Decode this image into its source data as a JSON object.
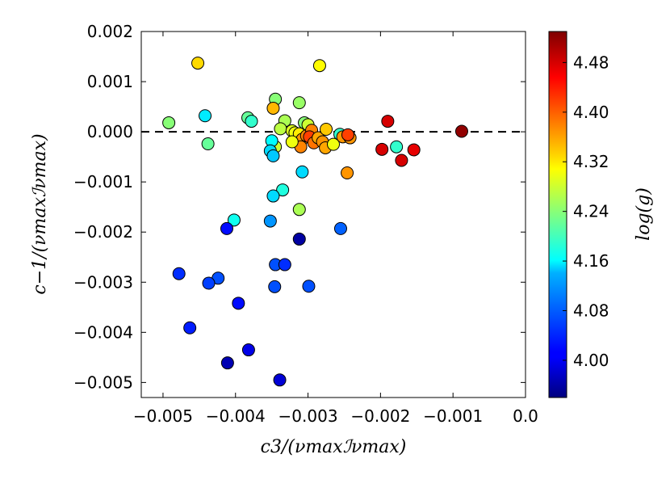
{
  "chart_data": {
    "type": "scatter",
    "title": "",
    "xlabel": "c3/(νmaxℐνmax)",
    "ylabel": "c−1/(νmaxℐνmax)",
    "xlim": [
      -0.0053,
      0.0
    ],
    "ylim": [
      -0.0053,
      0.002
    ],
    "xticks": [
      -0.005,
      -0.004,
      -0.003,
      -0.002,
      -0.001,
      0.0
    ],
    "yticks": [
      0.002,
      0.001,
      0.0,
      -0.001,
      -0.002,
      -0.003,
      -0.004,
      -0.005
    ],
    "xtick_labels": [
      "−0.005",
      "−0.004",
      "−0.003",
      "−0.002",
      "−0.001",
      "0.0"
    ],
    "ytick_labels": [
      "0.002",
      "0.001",
      "0.000",
      "−0.001",
      "−0.002",
      "−0.003",
      "−0.004",
      "−0.005"
    ],
    "reference_line": {
      "y": 0.0,
      "style": "dashed"
    },
    "colorbar": {
      "label": "log(g)",
      "range": [
        3.94,
        4.53
      ],
      "ticks": [
        4.0,
        4.08,
        4.16,
        4.24,
        4.32,
        4.4,
        4.48
      ],
      "tick_labels": [
        "4.00",
        "4.08",
        "4.16",
        "4.24",
        "4.32",
        "4.40",
        "4.48"
      ],
      "colormap": "jet"
    },
    "points": [
      {
        "x": -0.00452,
        "y": 0.00137,
        "c": 4.33
      },
      {
        "x": -0.00284,
        "y": 0.00132,
        "c": 4.31
      },
      {
        "x": -0.00345,
        "y": 0.00065,
        "c": 4.24
      },
      {
        "x": -0.00312,
        "y": 0.00058,
        "c": 4.25
      },
      {
        "x": -0.00348,
        "y": 0.00047,
        "c": 4.35
      },
      {
        "x": -0.00492,
        "y": 0.00018,
        "c": 4.24
      },
      {
        "x": -0.00442,
        "y": 0.00032,
        "c": 4.15
      },
      {
        "x": -0.00383,
        "y": 0.00028,
        "c": 4.22
      },
      {
        "x": -0.00378,
        "y": 0.00021,
        "c": 4.19
      },
      {
        "x": -0.00438,
        "y": -0.00024,
        "c": 4.22
      },
      {
        "x": -0.00332,
        "y": 0.00022,
        "c": 4.26
      },
      {
        "x": -0.00338,
        "y": 6e-05,
        "c": 4.27
      },
      {
        "x": -0.00322,
        "y": 2e-05,
        "c": 4.29
      },
      {
        "x": -0.00318,
        "y": -2e-05,
        "c": 4.3
      },
      {
        "x": -0.00305,
        "y": 0.00018,
        "c": 4.24
      },
      {
        "x": -0.003,
        "y": 0.00014,
        "c": 4.28
      },
      {
        "x": -0.00312,
        "y": -4e-05,
        "c": 4.32
      },
      {
        "x": -0.00308,
        "y": -0.00015,
        "c": 4.37
      },
      {
        "x": -0.00302,
        "y": -8e-05,
        "c": 4.38
      },
      {
        "x": -0.00295,
        "y": 3e-05,
        "c": 4.38
      },
      {
        "x": -0.00298,
        "y": -0.0001,
        "c": 4.42
      },
      {
        "x": -0.00292,
        "y": -0.00022,
        "c": 4.39
      },
      {
        "x": -0.00286,
        "y": -0.00012,
        "c": 4.36
      },
      {
        "x": -0.0028,
        "y": -0.0002,
        "c": 4.37
      },
      {
        "x": -0.00276,
        "y": -0.00032,
        "c": 4.36
      },
      {
        "x": -0.0031,
        "y": -0.0003,
        "c": 4.38
      },
      {
        "x": -0.00322,
        "y": -0.0002,
        "c": 4.3
      },
      {
        "x": -0.00345,
        "y": -0.0003,
        "c": 4.28
      },
      {
        "x": -0.0035,
        "y": -0.00018,
        "c": 4.16
      },
      {
        "x": -0.00352,
        "y": -0.00038,
        "c": 4.14
      },
      {
        "x": -0.00348,
        "y": -0.00048,
        "c": 4.13
      },
      {
        "x": -0.00275,
        "y": 5e-05,
        "c": 4.34
      },
      {
        "x": -0.00265,
        "y": -0.00025,
        "c": 4.3
      },
      {
        "x": -0.00256,
        "y": -5e-05,
        "c": 4.19
      },
      {
        "x": -0.00252,
        "y": -0.0001,
        "c": 4.37
      },
      {
        "x": -0.00242,
        "y": -0.00012,
        "c": 4.37
      },
      {
        "x": -0.00245,
        "y": -6e-05,
        "c": 4.42
      },
      {
        "x": -0.0019,
        "y": 0.00021,
        "c": 4.48
      },
      {
        "x": -0.00198,
        "y": -0.00035,
        "c": 4.48
      },
      {
        "x": -0.00178,
        "y": -0.0003,
        "c": 4.19
      },
      {
        "x": -0.00171,
        "y": -0.00057,
        "c": 4.48
      },
      {
        "x": -0.00154,
        "y": -0.00036,
        "c": 4.47
      },
      {
        "x": -0.00088,
        "y": 1e-05,
        "c": 4.52
      },
      {
        "x": -0.00246,
        "y": -0.00082,
        "c": 4.37
      },
      {
        "x": -0.00308,
        "y": -0.0008,
        "c": 4.14
      },
      {
        "x": -0.00335,
        "y": -0.00116,
        "c": 4.18
      },
      {
        "x": -0.00348,
        "y": -0.00128,
        "c": 4.14
      },
      {
        "x": -0.00312,
        "y": -0.00155,
        "c": 4.26
      },
      {
        "x": -0.00402,
        "y": -0.00176,
        "c": 4.17
      },
      {
        "x": -0.00352,
        "y": -0.00178,
        "c": 4.1
      },
      {
        "x": -0.00412,
        "y": -0.00193,
        "c": 4.02
      },
      {
        "x": -0.00255,
        "y": -0.00193,
        "c": 4.07
      },
      {
        "x": -0.00312,
        "y": -0.00214,
        "c": 3.96
      },
      {
        "x": -0.00478,
        "y": -0.00283,
        "c": 4.04
      },
      {
        "x": -0.00424,
        "y": -0.00292,
        "c": 4.06
      },
      {
        "x": -0.00437,
        "y": -0.00302,
        "c": 4.05
      },
      {
        "x": -0.00345,
        "y": -0.00265,
        "c": 4.06
      },
      {
        "x": -0.00332,
        "y": -0.00265,
        "c": 4.04
      },
      {
        "x": -0.00346,
        "y": -0.00309,
        "c": 4.06
      },
      {
        "x": -0.00299,
        "y": -0.00308,
        "c": 4.06
      },
      {
        "x": -0.00396,
        "y": -0.00342,
        "c": 4.02
      },
      {
        "x": -0.00463,
        "y": -0.00391,
        "c": 4.03
      },
      {
        "x": -0.00382,
        "y": -0.00435,
        "c": 4.0
      },
      {
        "x": -0.00411,
        "y": -0.00461,
        "c": 3.97
      },
      {
        "x": -0.00339,
        "y": -0.00495,
        "c": 3.99
      }
    ]
  }
}
